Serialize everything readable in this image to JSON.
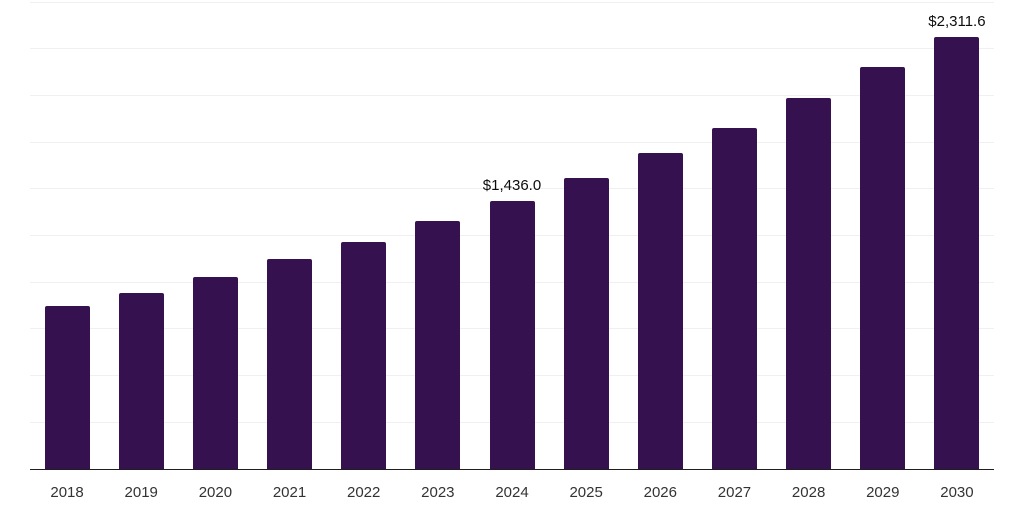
{
  "chart_data": {
    "type": "bar",
    "title": "",
    "xlabel": "",
    "ylabel": "",
    "categories": [
      "2018",
      "2019",
      "2020",
      "2021",
      "2022",
      "2023",
      "2024",
      "2025",
      "2026",
      "2027",
      "2028",
      "2029",
      "2030"
    ],
    "values": [
      870,
      943,
      1029,
      1122,
      1217,
      1330,
      1436.0,
      1560,
      1690,
      1826,
      1984,
      2151,
      2311.6
    ],
    "value_labels": {
      "2024": "$1,436.0",
      "2030": "$2,311.6"
    },
    "ylim": [
      0,
      2500
    ],
    "grid_step": 250,
    "grid": true,
    "legend": false,
    "y_axis_tick_labels_shown": false,
    "colors": {
      "bar": "#351150",
      "grid": "#f0f0f0",
      "axis": "#1f1f1f",
      "tick_label": "#333333",
      "value_label": "#0d0d0d",
      "background": "#ffffff"
    }
  }
}
